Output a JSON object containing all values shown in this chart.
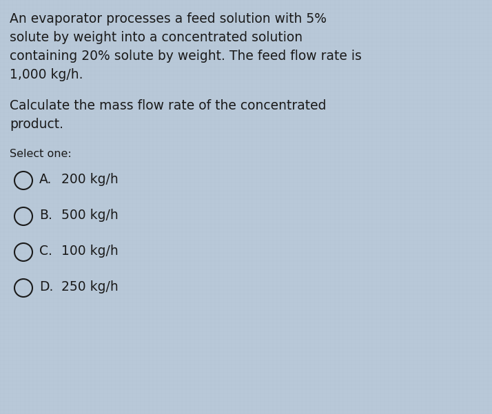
{
  "background_color": "#b8c8d8",
  "text_color": "#1a1a1a",
  "paragraph1_lines": [
    "An evaporator processes a feed solution with 5%",
    "solute by weight into a concentrated solution",
    "containing 20% solute by weight. The feed flow rate is",
    "1,000 kg/h."
  ],
  "paragraph2_lines": [
    "Calculate the mass flow rate of the concentrated",
    "product."
  ],
  "select_label": "Select one:",
  "options": [
    {
      "label": "A.",
      "text": "200 kg/h"
    },
    {
      "label": "B.",
      "text": "500 kg/h"
    },
    {
      "label": "C.",
      "text": "100 kg/h"
    },
    {
      "label": "D.",
      "text": "250 kg/h"
    }
  ],
  "font_size_body": 13.5,
  "font_size_select": 11.5,
  "font_size_options": 13.5,
  "fig_width": 7.14,
  "fig_height": 6.01,
  "dpi": 100
}
